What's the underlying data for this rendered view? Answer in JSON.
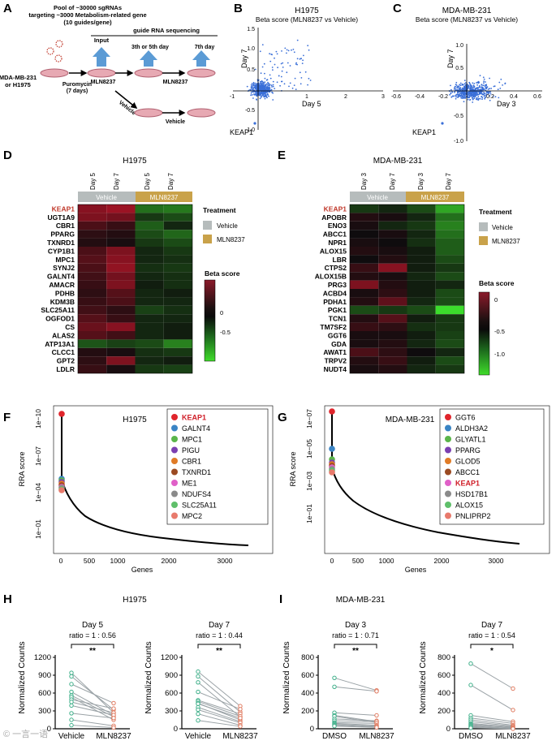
{
  "panels": {
    "A": {
      "label": "A",
      "pool_text": [
        "Pool of ~30000 sgRNAs",
        "targeting ~3000 Metabolism-related gene",
        "(10 guides/gene)"
      ],
      "cells": [
        "MDA-MB-231",
        "or H1975"
      ],
      "puromycin": [
        "Puromycin",
        "(7 days)"
      ],
      "input": "Input",
      "seq_header": "guide RNA sequencing",
      "day35": "3th or 5th day",
      "day7": "7th day",
      "drug1": "MLN8237",
      "drug2": "MLN8237",
      "vehicle_arrow": "Vehicle",
      "vehicle_end": "Vehicle"
    },
    "B": {
      "label": "B",
      "title": "H1975",
      "subtitle": "Beta score (MLN8237 vs Vehicle)",
      "xlabel": "Day 5",
      "ylabel": "Day 7",
      "point_label": "KEAP1",
      "xticks": [
        "-1",
        "1",
        "2",
        "3"
      ],
      "yticks": [
        "1.5",
        "1.0",
        "0.5",
        "-0.5",
        "-1.0"
      ]
    },
    "C": {
      "label": "C",
      "title": "MDA-MB-231",
      "subtitle": "Beta score (MLN8237 vs Vehicle)",
      "xlabel": "Day 3",
      "ylabel": "Day 7",
      "point_label": "KEAP1",
      "xticks": [
        "-0.6",
        "-0.4",
        "-0.2",
        "0.2",
        "0.4",
        "0.6"
      ],
      "yticks": [
        "1.0",
        "0.5",
        "-0.5",
        "-1.0"
      ]
    },
    "D": {
      "label": "D",
      "title": "H1975",
      "days": [
        "Day 5",
        "Day 7",
        "Day 5",
        "Day 7"
      ],
      "groups": [
        "Vehicle",
        "MLN8237"
      ],
      "genes": [
        "KEAP1",
        "UGT1A9",
        "CBR1",
        "PPARG",
        "TXNRD1",
        "CYP1B1",
        "MPC1",
        "SYNJ2",
        "GALNT4",
        "AMACR",
        "PDHB",
        "KDM3B",
        "SLC25A11",
        "OGFOD1",
        "CS",
        "ALAS2",
        "ATP13A1",
        "CLCC1",
        "GPT2",
        "LDLR"
      ],
      "legend_title": "Treatment",
      "legend_items": [
        "Vehicle",
        "MLN8237"
      ],
      "scale_title": "Beta score",
      "scale_ticks": [
        "0",
        "-0.5"
      ],
      "values": [
        [
          0.6,
          0.7,
          -0.5,
          -0.55
        ],
        [
          0.55,
          0.5,
          -0.2,
          -0.3
        ],
        [
          0.3,
          0.2,
          -0.4,
          -0.1
        ],
        [
          0.15,
          0.1,
          -0.3,
          -0.45
        ],
        [
          0.1,
          0.05,
          -0.2,
          -0.3
        ],
        [
          0.3,
          0.55,
          -0.1,
          -0.2
        ],
        [
          0.35,
          0.6,
          -0.1,
          -0.15
        ],
        [
          0.3,
          0.65,
          -0.15,
          -0.2
        ],
        [
          0.25,
          0.5,
          -0.1,
          -0.15
        ],
        [
          0.2,
          0.55,
          -0.05,
          -0.15
        ],
        [
          0.15,
          0.35,
          -0.1,
          -0.05
        ],
        [
          0.2,
          0.3,
          -0.1,
          -0.1
        ],
        [
          0.25,
          0.15,
          -0.25,
          -0.15
        ],
        [
          0.35,
          0.2,
          -0.1,
          -0.1
        ],
        [
          0.45,
          0.6,
          -0.1,
          -0.05
        ],
        [
          0.35,
          0.25,
          -0.1,
          -0.05
        ],
        [
          -0.35,
          -0.25,
          -0.3,
          -0.6
        ],
        [
          0.1,
          0.05,
          -0.15,
          -0.2
        ],
        [
          0.15,
          0.55,
          -0.1,
          -0.05
        ],
        [
          0.2,
          0.05,
          -0.2,
          -0.25
        ]
      ]
    },
    "E": {
      "label": "E",
      "title": "MDA-MB-231",
      "days": [
        "Day 3",
        "Day 7",
        "Day 3",
        "Day 7"
      ],
      "groups": [
        "Vehicle",
        "MLN8237"
      ],
      "genes": [
        "KEAP1",
        "APOBR",
        "ENO3",
        "ABCC1",
        "NPR1",
        "ALOX15",
        "LBR",
        "CTPS2",
        "ALOX15B",
        "PRG3",
        "ACBD4",
        "PDHA1",
        "PGK1",
        "TCN1",
        "TM7SF2",
        "GGT6",
        "GDA",
        "AWAT1",
        "TRPV2",
        "NUDT4"
      ],
      "legend_title": "Treatment",
      "legend_items": [
        "Vehicle",
        "MLN8237"
      ],
      "scale_title": "Beta score",
      "scale_ticks": [
        "0",
        "-0.5",
        "-1.0"
      ],
      "values": [
        [
          -0.2,
          -0.1,
          -0.3,
          -0.8
        ],
        [
          0.1,
          0.05,
          -0.1,
          -0.5
        ],
        [
          0.05,
          -0.1,
          -0.2,
          -0.6
        ],
        [
          0.0,
          0.05,
          -0.1,
          -0.5
        ],
        [
          0.05,
          0.0,
          -0.15,
          -0.4
        ],
        [
          0.1,
          0.05,
          -0.05,
          -0.4
        ],
        [
          0.0,
          0.1,
          -0.05,
          -0.3
        ],
        [
          0.2,
          0.6,
          -0.05,
          -0.2
        ],
        [
          0.1,
          0.05,
          -0.1,
          -0.3
        ],
        [
          0.55,
          0.1,
          -0.05,
          -0.1
        ],
        [
          0.05,
          0.15,
          -0.05,
          -0.3
        ],
        [
          0.1,
          0.4,
          -0.1,
          -0.3
        ],
        [
          -0.3,
          -0.2,
          -0.3,
          -1.1
        ],
        [
          0.1,
          0.35,
          -0.05,
          -0.2
        ],
        [
          0.2,
          0.15,
          -0.15,
          -0.2
        ],
        [
          0.05,
          0.05,
          -0.05,
          -0.25
        ],
        [
          0.05,
          0.1,
          -0.1,
          -0.3
        ],
        [
          0.3,
          0.15,
          0.0,
          -0.1
        ],
        [
          0.1,
          0.2,
          -0.05,
          -0.3
        ],
        [
          0.05,
          0.1,
          -0.1,
          -0.2
        ]
      ]
    },
    "F": {
      "label": "F",
      "title": "H1975",
      "ylabel": "RRA score",
      "xlabel": "Genes",
      "yticks": [
        "1e−10",
        "1e−07",
        "1e−04",
        "1e−01"
      ],
      "xticks": [
        "0",
        "500",
        "1000",
        "2000",
        "3000"
      ],
      "legend": [
        {
          "name": "KEAP1",
          "color": "#e0252c"
        },
        {
          "name": "GALNT4",
          "color": "#3a84c4"
        },
        {
          "name": "MPC1",
          "color": "#5ab54a"
        },
        {
          "name": "PIGU",
          "color": "#7b3fb1"
        },
        {
          "name": "CBR1",
          "color": "#e07b27"
        },
        {
          "name": "TXNRD1",
          "color": "#9b4a22"
        },
        {
          "name": "ME1",
          "color": "#e060c8"
        },
        {
          "name": "NDUFS4",
          "color": "#8a8a8a"
        },
        {
          "name": "SLC25A11",
          "color": "#5fbf6a"
        },
        {
          "name": "MPC2",
          "color": "#e87a6c"
        }
      ]
    },
    "G": {
      "label": "G",
      "title": "MDA-MB-231",
      "ylabel": "RRA score",
      "xlabel": "Genes",
      "yticks": [
        "1e−07",
        "1e−05",
        "1e−03",
        "1e−01"
      ],
      "xticks": [
        "0",
        "500",
        "1000",
        "2000",
        "3000"
      ],
      "legend": [
        {
          "name": "GGT6",
          "color": "#e0252c"
        },
        {
          "name": "ALDH3A2",
          "color": "#3a84c4"
        },
        {
          "name": "GLYATL1",
          "color": "#5ab54a"
        },
        {
          "name": "PPARG",
          "color": "#7b3fb1"
        },
        {
          "name": "GLOD5",
          "color": "#e07b27"
        },
        {
          "name": "ABCC1",
          "color": "#9b4a22"
        },
        {
          "name": "KEAP1",
          "color": "#e060c8"
        },
        {
          "name": "HSD17B1",
          "color": "#8a8a8a"
        },
        {
          "name": "ALOX15",
          "color": "#5fbf6a"
        },
        {
          "name": "PNLIPRP2",
          "color": "#e87a6c"
        }
      ]
    },
    "H": {
      "label": "H",
      "title": "H1975",
      "ylabel": "Normalized Counts",
      "sub1": {
        "day": "Day 5",
        "ratio": "ratio = 1 : 0.56",
        "sig": "**",
        "xt": [
          "Vehicle",
          "MLN8237"
        ],
        "yticks": [
          "1200",
          "900",
          "600",
          "300",
          "0"
        ],
        "pairs": [
          [
            940,
            270
          ],
          [
            880,
            320
          ],
          [
            750,
            430
          ],
          [
            620,
            230
          ],
          [
            560,
            200
          ],
          [
            530,
            150
          ],
          [
            490,
            340
          ],
          [
            450,
            270
          ],
          [
            390,
            230
          ],
          [
            260,
            180
          ],
          [
            150,
            50
          ],
          [
            60,
            20
          ]
        ]
      },
      "sub2": {
        "day": "Day 7",
        "ratio": "ratio = 1 : 0.44",
        "sig": "**",
        "xt": [
          "Vehicle",
          "MLN8237"
        ],
        "yticks": [
          "1200",
          "900",
          "600",
          "300",
          "0"
        ],
        "pairs": [
          [
            960,
            380
          ],
          [
            880,
            280
          ],
          [
            780,
            200
          ],
          [
            620,
            330
          ],
          [
            480,
            250
          ],
          [
            460,
            210
          ],
          [
            430,
            150
          ],
          [
            420,
            180
          ],
          [
            360,
            120
          ],
          [
            320,
            100
          ],
          [
            250,
            60
          ],
          [
            140,
            40
          ]
        ]
      }
    },
    "I": {
      "label": "I",
      "title": "MDA-MB-231",
      "ylabel": "Normalized Counts",
      "sub1": {
        "day": "Day 3",
        "ratio": "ratio = 1 : 0.71",
        "sig": "**",
        "xt": [
          "DMSO",
          "MLN8237"
        ],
        "yticks": [
          "800",
          "600",
          "400",
          "200",
          "0"
        ],
        "pairs": [
          [
            570,
            430
          ],
          [
            470,
            420
          ],
          [
            180,
            150
          ],
          [
            150,
            80
          ],
          [
            140,
            70
          ],
          [
            110,
            90
          ],
          [
            90,
            80
          ],
          [
            70,
            60
          ],
          [
            60,
            40
          ],
          [
            50,
            30
          ],
          [
            40,
            20
          ],
          [
            30,
            15
          ]
        ]
      },
      "sub2": {
        "day": "Day 7",
        "ratio": "ratio = 1 : 0.54",
        "sig": "*",
        "xt": [
          "DMSO",
          "MLN8237"
        ],
        "yticks": [
          "800",
          "600",
          "400",
          "200",
          "0"
        ],
        "pairs": [
          [
            730,
            450
          ],
          [
            490,
            210
          ],
          [
            150,
            80
          ],
          [
            120,
            60
          ],
          [
            100,
            40
          ],
          [
            80,
            30
          ],
          [
            60,
            20
          ],
          [
            50,
            10
          ],
          [
            40,
            15
          ],
          [
            30,
            5
          ],
          [
            20,
            5
          ],
          [
            10,
            0
          ]
        ]
      }
    }
  },
  "colors": {
    "vehicle": "#b6bcbc",
    "mln": "#c9a24a",
    "scatter": "#3a6fd8",
    "keap1": "#c0392b",
    "pair_left": "#3fb08a",
    "pair_right": "#e07a5f",
    "pair_line": "#9aa2a6",
    "arrow": "#5b9bd5",
    "dish": "#e7a9b3"
  },
  "watermark": "© 一言一语"
}
